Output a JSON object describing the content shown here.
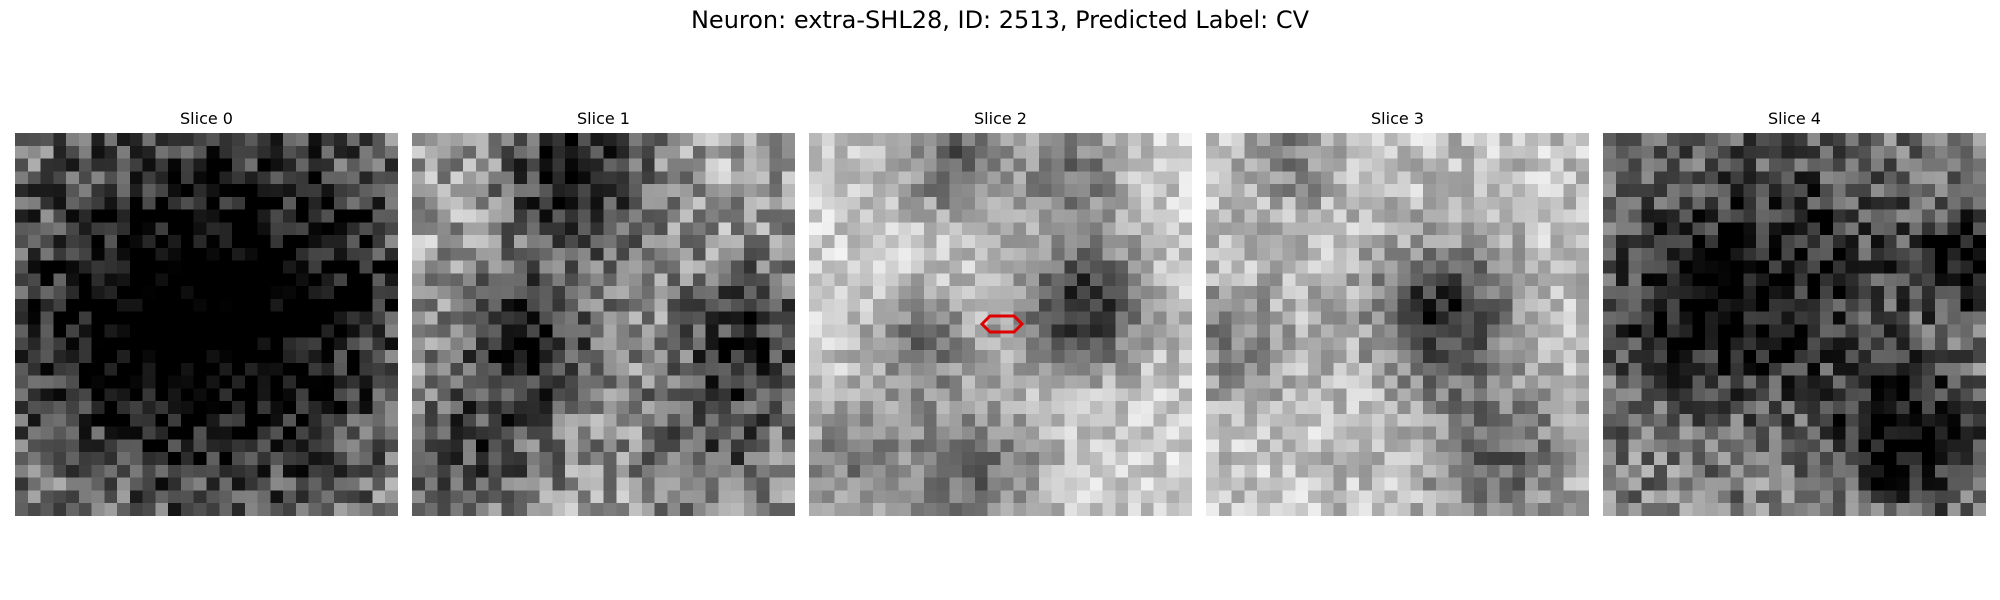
{
  "figure": {
    "title": "Neuron: extra-SHL28, ID: 2513, Predicted Label: CV"
  },
  "slices": [
    {
      "label": "Slice 0",
      "seed": 11,
      "base": 0.52,
      "noise": 0.55,
      "blobs": [
        [
          0.45,
          0.3,
          0.3,
          0.35
        ],
        [
          0.2,
          0.55,
          0.2,
          0.3
        ],
        [
          0.75,
          0.4,
          0.25,
          0.3
        ],
        [
          0.55,
          0.7,
          0.25,
          0.3
        ]
      ]
    },
    {
      "label": "Slice 1",
      "seed": 23,
      "base": 0.65,
      "noise": 0.5,
      "blobs": [
        [
          0.43,
          0.1,
          0.14,
          0.6
        ],
        [
          0.3,
          0.55,
          0.14,
          0.5
        ],
        [
          0.9,
          0.52,
          0.14,
          0.45
        ],
        [
          0.15,
          0.85,
          0.15,
          0.35
        ],
        [
          0.8,
          0.82,
          0.15,
          0.3
        ]
      ]
    },
    {
      "label": "Slice 2",
      "seed": 37,
      "base": 0.8,
      "noise": 0.32,
      "blobs": [
        [
          0.72,
          0.45,
          0.12,
          0.65
        ],
        [
          0.38,
          0.07,
          0.1,
          0.45
        ],
        [
          0.7,
          0.08,
          0.1,
          0.35
        ],
        [
          0.28,
          0.55,
          0.1,
          0.35
        ],
        [
          0.42,
          0.9,
          0.14,
          0.4
        ],
        [
          0.08,
          0.85,
          0.1,
          0.3
        ]
      ],
      "marker": true
    },
    {
      "label": "Slice 3",
      "seed": 41,
      "base": 0.76,
      "noise": 0.36,
      "blobs": [
        [
          0.62,
          0.47,
          0.13,
          0.62
        ],
        [
          0.78,
          0.85,
          0.14,
          0.38
        ],
        [
          0.22,
          0.05,
          0.1,
          0.25
        ],
        [
          0.06,
          0.55,
          0.12,
          0.25
        ]
      ]
    },
    {
      "label": "Slice 4",
      "seed": 53,
      "base": 0.52,
      "noise": 0.5,
      "blobs": [
        [
          0.45,
          0.35,
          0.25,
          0.4
        ],
        [
          0.8,
          0.8,
          0.13,
          0.55
        ],
        [
          0.97,
          0.33,
          0.1,
          0.5
        ],
        [
          0.2,
          0.5,
          0.18,
          0.25
        ]
      ]
    }
  ]
}
